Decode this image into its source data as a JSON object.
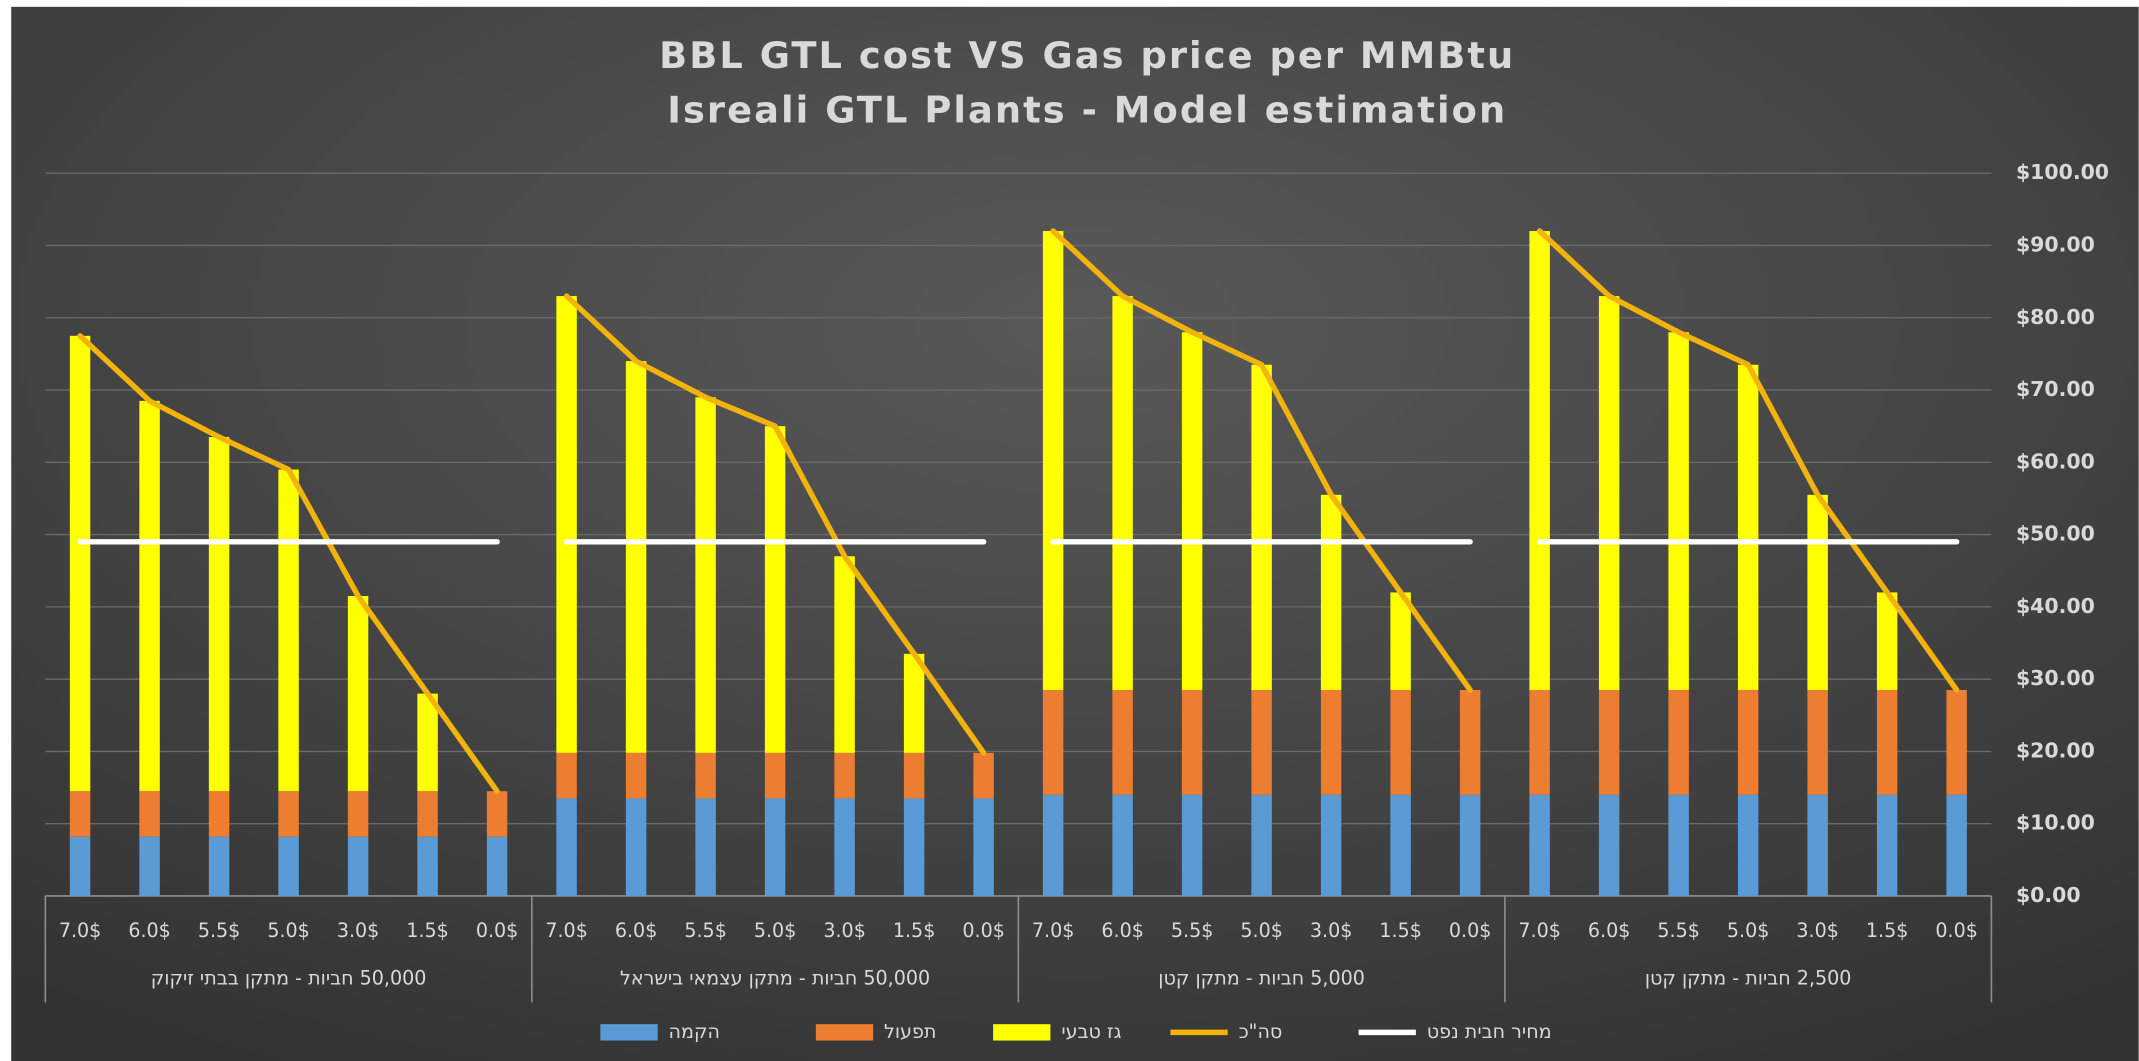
{
  "chart_data": {
    "type": "bar",
    "title": "BBL GTL cost VS Gas price per MMBtu",
    "subtitle": "Isreali GTL Plants - Model estimation",
    "categories": [
      "7.0$",
      "6.0$",
      "5.5$",
      "5.0$",
      "3.0$",
      "1.5$",
      "0.0$",
      "7.0$",
      "6.0$",
      "5.5$",
      "5.0$",
      "3.0$",
      "1.5$",
      "0.0$",
      "7.0$",
      "6.0$",
      "5.5$",
      "5.0$",
      "3.0$",
      "1.5$",
      "0.0$",
      "7.0$",
      "6.0$",
      "5.5$",
      "5.0$",
      "3.0$",
      "1.5$",
      "0.0$"
    ],
    "group_labels": [
      "50,000 חביות - מתקן  בבתי זיקוק",
      "50,000 חביות - מתקן עצמאי בישראל",
      "5,000 חביות  - מתקן קטן",
      "2,500 חביות  - מתקן קטן"
    ],
    "series": [
      {
        "name": "הקמה",
        "type": "bar",
        "color": "#5b9bd5",
        "values": [
          8.2,
          8.2,
          8.2,
          8.2,
          8.2,
          8.2,
          8.2,
          13.5,
          13.5,
          13.5,
          13.5,
          13.5,
          13.5,
          13.5,
          14,
          14,
          14,
          14,
          14,
          14,
          14,
          14,
          14,
          14,
          14,
          14,
          14,
          14
        ]
      },
      {
        "name": "תפעול",
        "type": "bar",
        "color": "#ed7d31",
        "values": [
          6.3,
          6.3,
          6.3,
          6.3,
          6.3,
          6.3,
          6.3,
          6.3,
          6.3,
          6.3,
          6.3,
          6.3,
          6.3,
          6.3,
          14.5,
          14.5,
          14.5,
          14.5,
          14.5,
          14.5,
          14.5,
          14.5,
          14.5,
          14.5,
          14.5,
          14.5,
          14.5,
          14.5
        ]
      },
      {
        "name": "גז טבעי",
        "type": "bar",
        "color": "#ffff00",
        "values": [
          63,
          54,
          49,
          44.5,
          27,
          13.5,
          0,
          63.2,
          54.2,
          49.2,
          45.2,
          27.2,
          13.7,
          0,
          63.5,
          54.5,
          49.5,
          45,
          27,
          13.5,
          0,
          63.5,
          54.5,
          49.5,
          45,
          27,
          13.5,
          0
        ]
      },
      {
        "name": "סה\"כ",
        "type": "line",
        "color": "#f2b40c",
        "values": [
          77.5,
          68.5,
          63.5,
          59,
          41.5,
          28,
          14.5,
          83,
          74,
          69,
          65,
          47,
          33.5,
          19.8,
          92,
          83,
          78,
          73.5,
          55.5,
          42,
          28.5,
          92,
          83,
          78,
          73.5,
          55.5,
          42,
          28.5
        ]
      },
      {
        "name": "מחיר חבית נפט",
        "type": "line",
        "color": "#ffffff",
        "values": [
          49,
          49,
          49,
          49,
          49,
          49,
          49,
          49,
          49,
          49,
          49,
          49,
          49,
          49,
          49,
          49,
          49,
          49,
          49,
          49,
          49,
          49,
          49,
          49,
          49,
          49,
          49,
          49
        ]
      }
    ],
    "ylim": [
      0,
      100
    ],
    "yticks": [
      {
        "value": 0,
        "label": "$0.00"
      },
      {
        "value": 10,
        "label": "$10.00"
      },
      {
        "value": 20,
        "label": "$20.00"
      },
      {
        "value": 30,
        "label": "$30.00"
      },
      {
        "value": 40,
        "label": "$40.00"
      },
      {
        "value": 50,
        "label": "$50.00"
      },
      {
        "value": 60,
        "label": "$60.00"
      },
      {
        "value": 70,
        "label": "$70.00"
      },
      {
        "value": 80,
        "label": "$80.00"
      },
      {
        "value": 90,
        "label": "$90.00"
      },
      {
        "value": 100,
        "label": "$100.00"
      }
    ],
    "grid": true,
    "legend": "bottom"
  }
}
